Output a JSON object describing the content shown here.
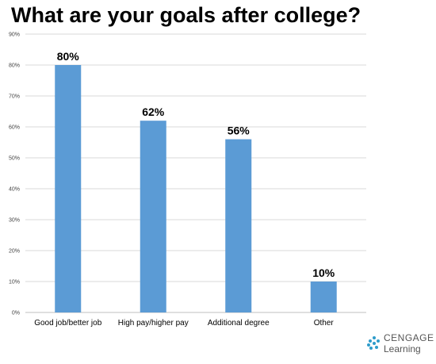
{
  "chart_data": {
    "type": "bar",
    "title": "What are your goals after college?",
    "categories": [
      "Good job/better job",
      "High pay/higher pay",
      "Additional degree",
      "Other"
    ],
    "values": [
      80,
      62,
      56,
      10
    ],
    "data_labels": [
      "80%",
      "62%",
      "56%",
      "10%"
    ],
    "ylim": [
      0,
      90
    ],
    "yticks": [
      "0%",
      "10%",
      "20%",
      "30%",
      "40%",
      "50%",
      "60%",
      "70%",
      "80%",
      "90%"
    ],
    "grid": true,
    "bar_color": "#5B9BD5",
    "grid_color": "#D9D9D9"
  },
  "branding": {
    "line1": "CENGAGE",
    "line2": "Learning",
    "logo_icon": "cengage-logo-mark-icon",
    "accent": "#2E9CCA"
  }
}
